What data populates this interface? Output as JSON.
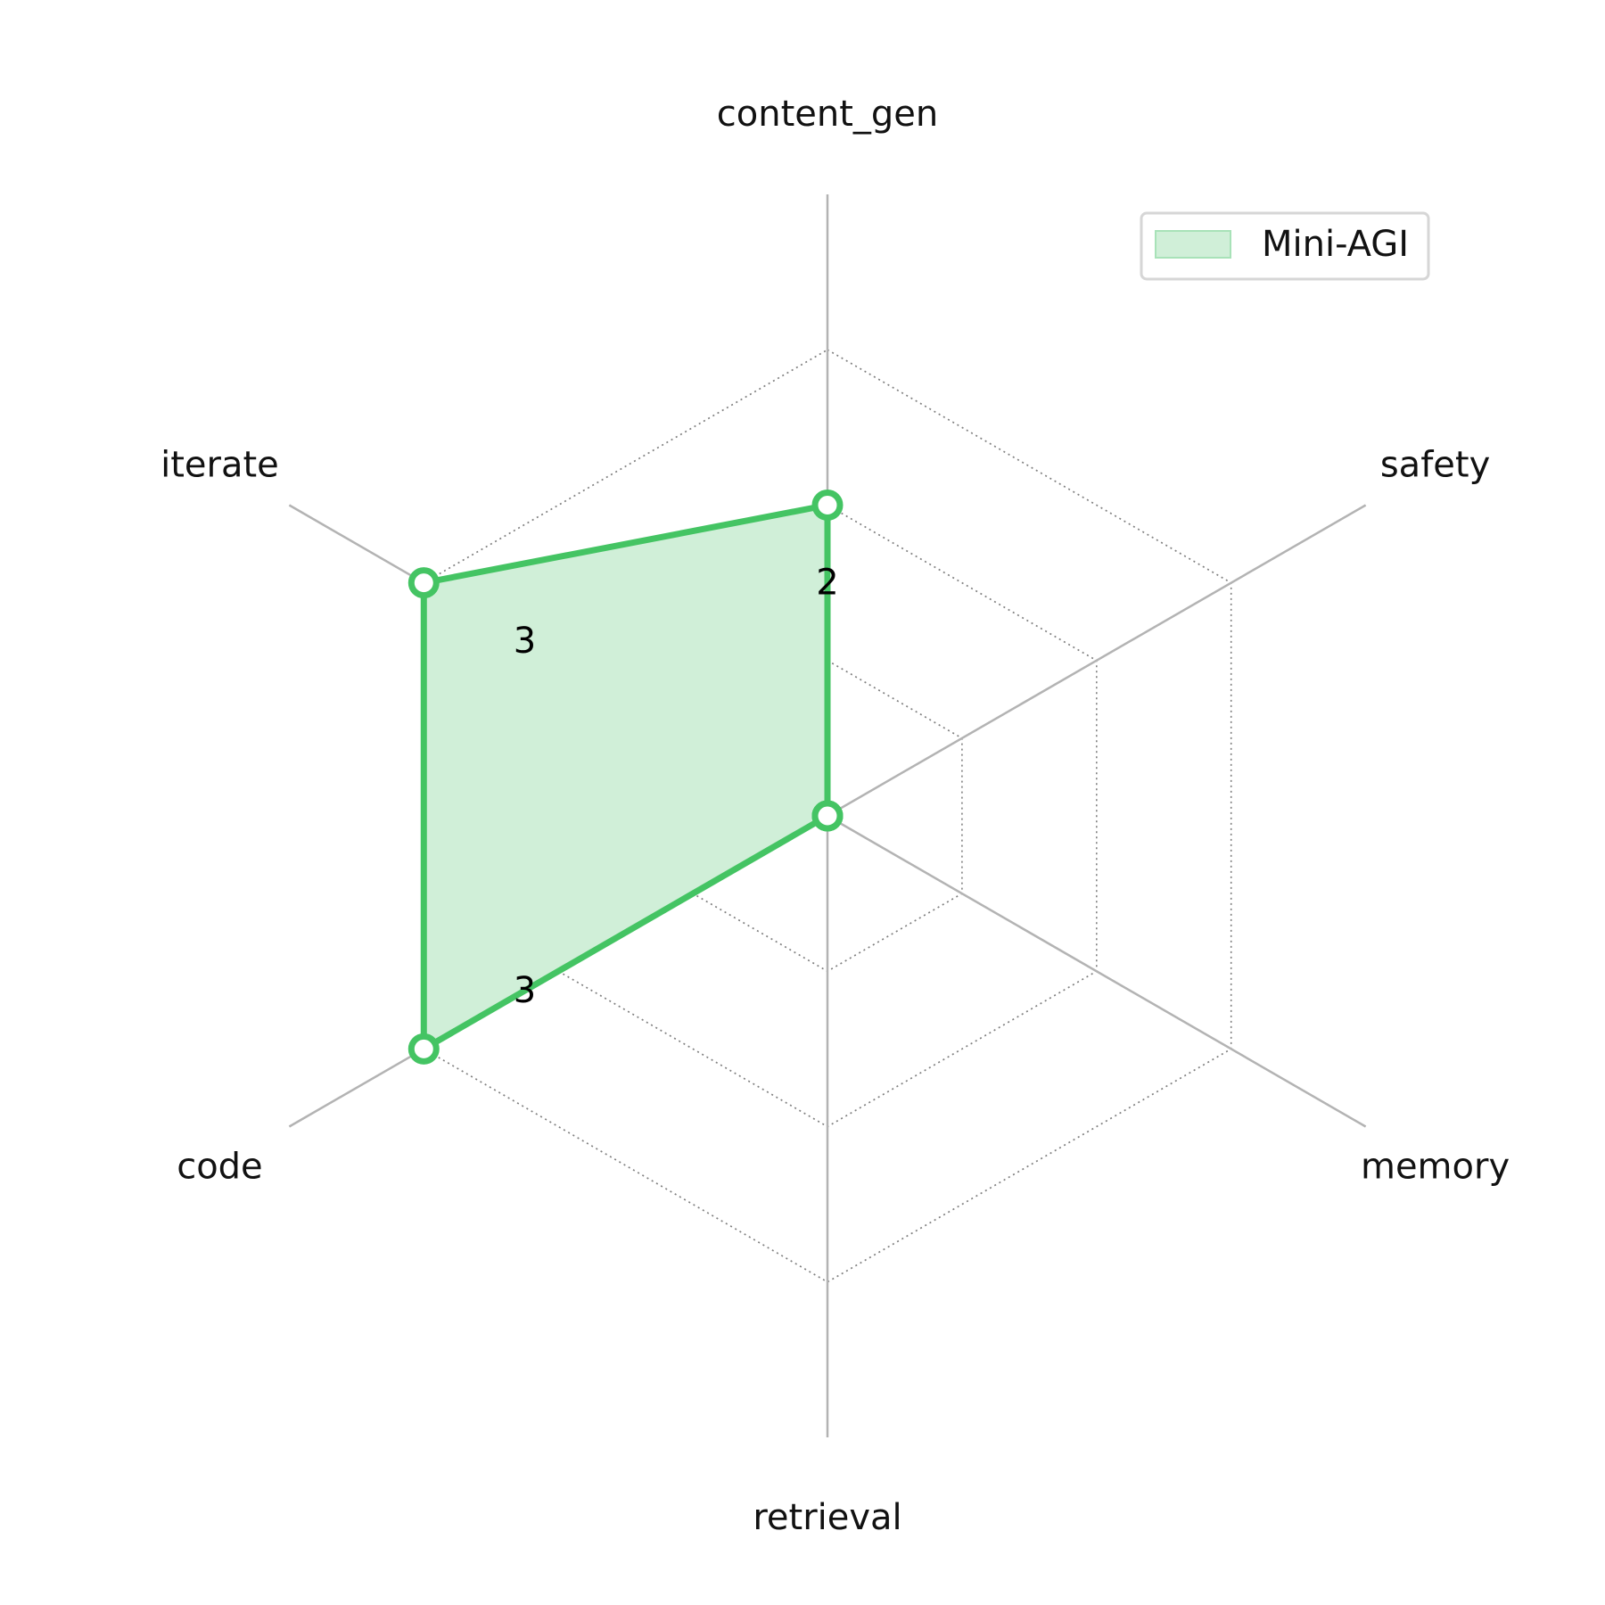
{
  "chart_data": {
    "type": "radar",
    "axes": [
      "content_gen",
      "safety",
      "memory",
      "retrieval",
      "code",
      "iterate"
    ],
    "rlim": [
      0,
      4
    ],
    "grid_levels": [
      1,
      2,
      3
    ],
    "series": [
      {
        "name": "Mini-AGI",
        "values": [
          2,
          0,
          0,
          0,
          3,
          3
        ],
        "color": "#44c463",
        "fill": "#d0efd8"
      }
    ],
    "data_labels": [
      {
        "axis": "content_gen",
        "text": "2"
      },
      {
        "axis": "iterate",
        "text": "3"
      },
      {
        "axis": "code",
        "text": "3"
      }
    ],
    "legend": {
      "position": "top-right",
      "label": "Mini-AGI"
    },
    "colors": {
      "spoke": "#b3b3b3",
      "grid": "#7f7f7f",
      "legend_border": "#d6d6d6"
    }
  }
}
